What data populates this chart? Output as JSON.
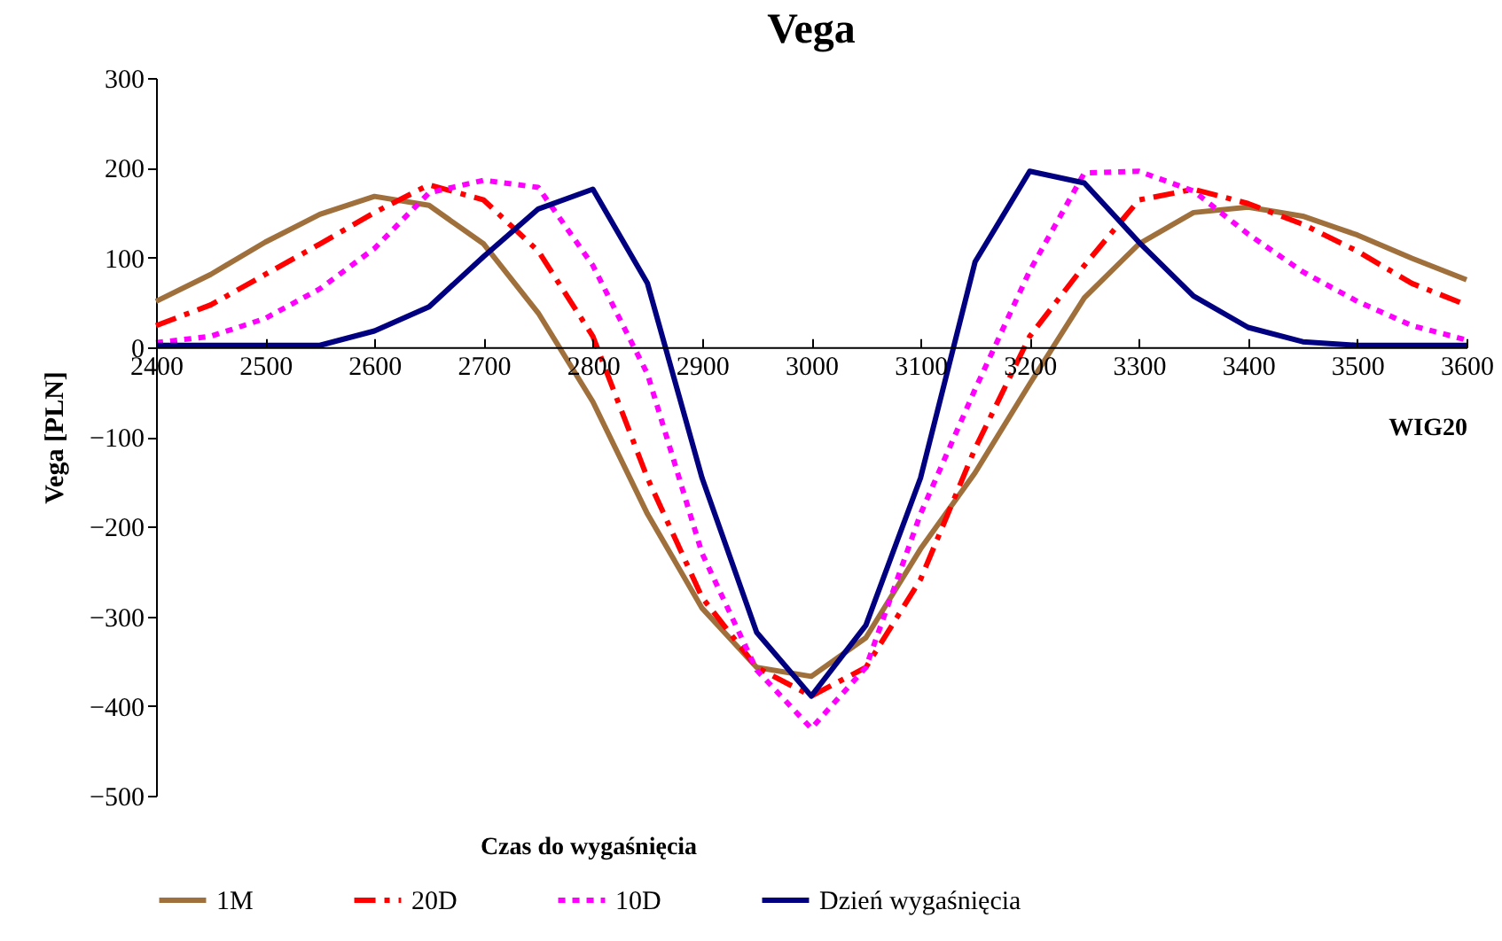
{
  "chart_data": {
    "type": "line",
    "title": "Vega",
    "xlabel": "WIG20",
    "ylabel": "Vega [PLN]",
    "legend_title": "Czas do wygaśnięcia",
    "x": [
      2400,
      2450,
      2500,
      2550,
      2600,
      2650,
      2700,
      2750,
      2800,
      2850,
      2900,
      2950,
      3000,
      3050,
      3100,
      3150,
      3200,
      3250,
      3300,
      3350,
      3400,
      3450,
      3500,
      3550,
      3600
    ],
    "series": [
      {
        "name": "1M",
        "color": "#a0703c",
        "line_style": "solid",
        "values": [
          51,
          81,
          117,
          148,
          168,
          158,
          115,
          38,
          -61,
          -186,
          -291,
          -357,
          -367,
          -324,
          -225,
          -140,
          -41,
          55,
          115,
          150,
          156,
          146,
          125,
          99,
          75
        ]
      },
      {
        "name": "20D",
        "color": "#ff0000",
        "line_style": "dashed",
        "values": [
          24,
          47,
          81,
          115,
          150,
          181,
          164,
          107,
          12,
          -146,
          -279,
          -357,
          -389,
          -357,
          -259,
          -113,
          12,
          91,
          164,
          176,
          160,
          137,
          107,
          71,
          47
        ]
      },
      {
        "name": "10D",
        "color": "#ff00ff",
        "line_style": "dotted",
        "values": [
          5,
          12,
          32,
          65,
          110,
          172,
          186,
          178,
          91,
          -30,
          -230,
          -360,
          -425,
          -357,
          -186,
          -47,
          85,
          194,
          196,
          174,
          126,
          84,
          51,
          24,
          8
        ]
      },
      {
        "name": "Dzień wygaśnięcia",
        "color": "#000080",
        "line_style": "solid",
        "values": [
          2,
          2,
          2,
          2,
          18,
          45,
          101,
          154,
          176,
          71,
          -146,
          -318,
          -389,
          -310,
          -146,
          95,
          196,
          183,
          117,
          57,
          22,
          6,
          2,
          2,
          2
        ]
      }
    ],
    "xlim": [
      2400,
      3600
    ],
    "xticks": [
      2400,
      2500,
      2600,
      2700,
      2800,
      2900,
      3000,
      3100,
      3200,
      3300,
      3400,
      3500,
      3600
    ],
    "ylim": [
      -500,
      300
    ],
    "yticks": [
      -500,
      -400,
      -300,
      -200,
      -100,
      0,
      100,
      200,
      300
    ],
    "grid": false,
    "legend": "bottom",
    "marker": "none"
  }
}
